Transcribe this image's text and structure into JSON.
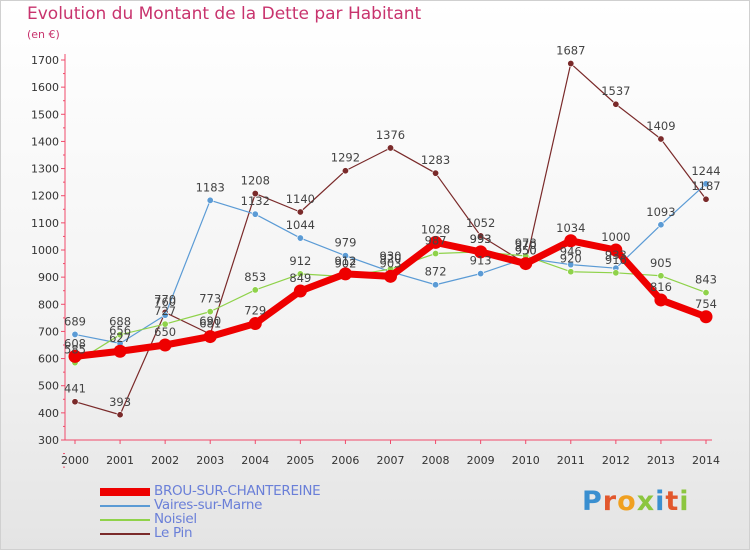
{
  "chart_data": {
    "type": "line",
    "title": "Evolution du Montant de la Dette par Habitant",
    "subtitle": "(en €)",
    "x": [
      "2000",
      "2001",
      "2002",
      "2003",
      "2004",
      "2005",
      "2006",
      "2007",
      "2008",
      "2009",
      "2010",
      "2011",
      "2012",
      "2013",
      "2014"
    ],
    "ylim": [
      300,
      1700
    ],
    "yticks": [
      300,
      400,
      500,
      600,
      700,
      800,
      900,
      1000,
      1100,
      1200,
      1300,
      1400,
      1500,
      1600,
      1700
    ],
    "grid": false,
    "legend_position": "bottom-left",
    "series": [
      {
        "name": "BROU-SUR-CHANTEREINE",
        "color": "#ee0000",
        "values": [
          608,
          627,
          650,
          681,
          729,
          849,
          912,
          903,
          1028,
          993,
          950,
          1034,
          1000,
          816,
          754
        ]
      },
      {
        "name": "Vaires-sur-Marne",
        "color": "#5b9bd5",
        "values": [
          689,
          656,
          760,
          1183,
          1132,
          1044,
          979,
          920,
          872,
          913,
          970,
          946,
          933,
          1093,
          1244
        ]
      },
      {
        "name": "Noisiel",
        "color": "#8fd24a",
        "values": [
          585,
          688,
          727,
          773,
          853,
          912,
          902,
          930,
          987,
          993,
          978,
          920,
          916,
          905,
          843
        ]
      },
      {
        "name": "Le Pin",
        "color": "#7a2a2a",
        "values": [
          441,
          393,
          770,
          690,
          1208,
          1140,
          1292,
          1376,
          1283,
          1052,
          950,
          1687,
          1537,
          1409,
          1187
        ]
      }
    ]
  },
  "brand": "Proxiti"
}
